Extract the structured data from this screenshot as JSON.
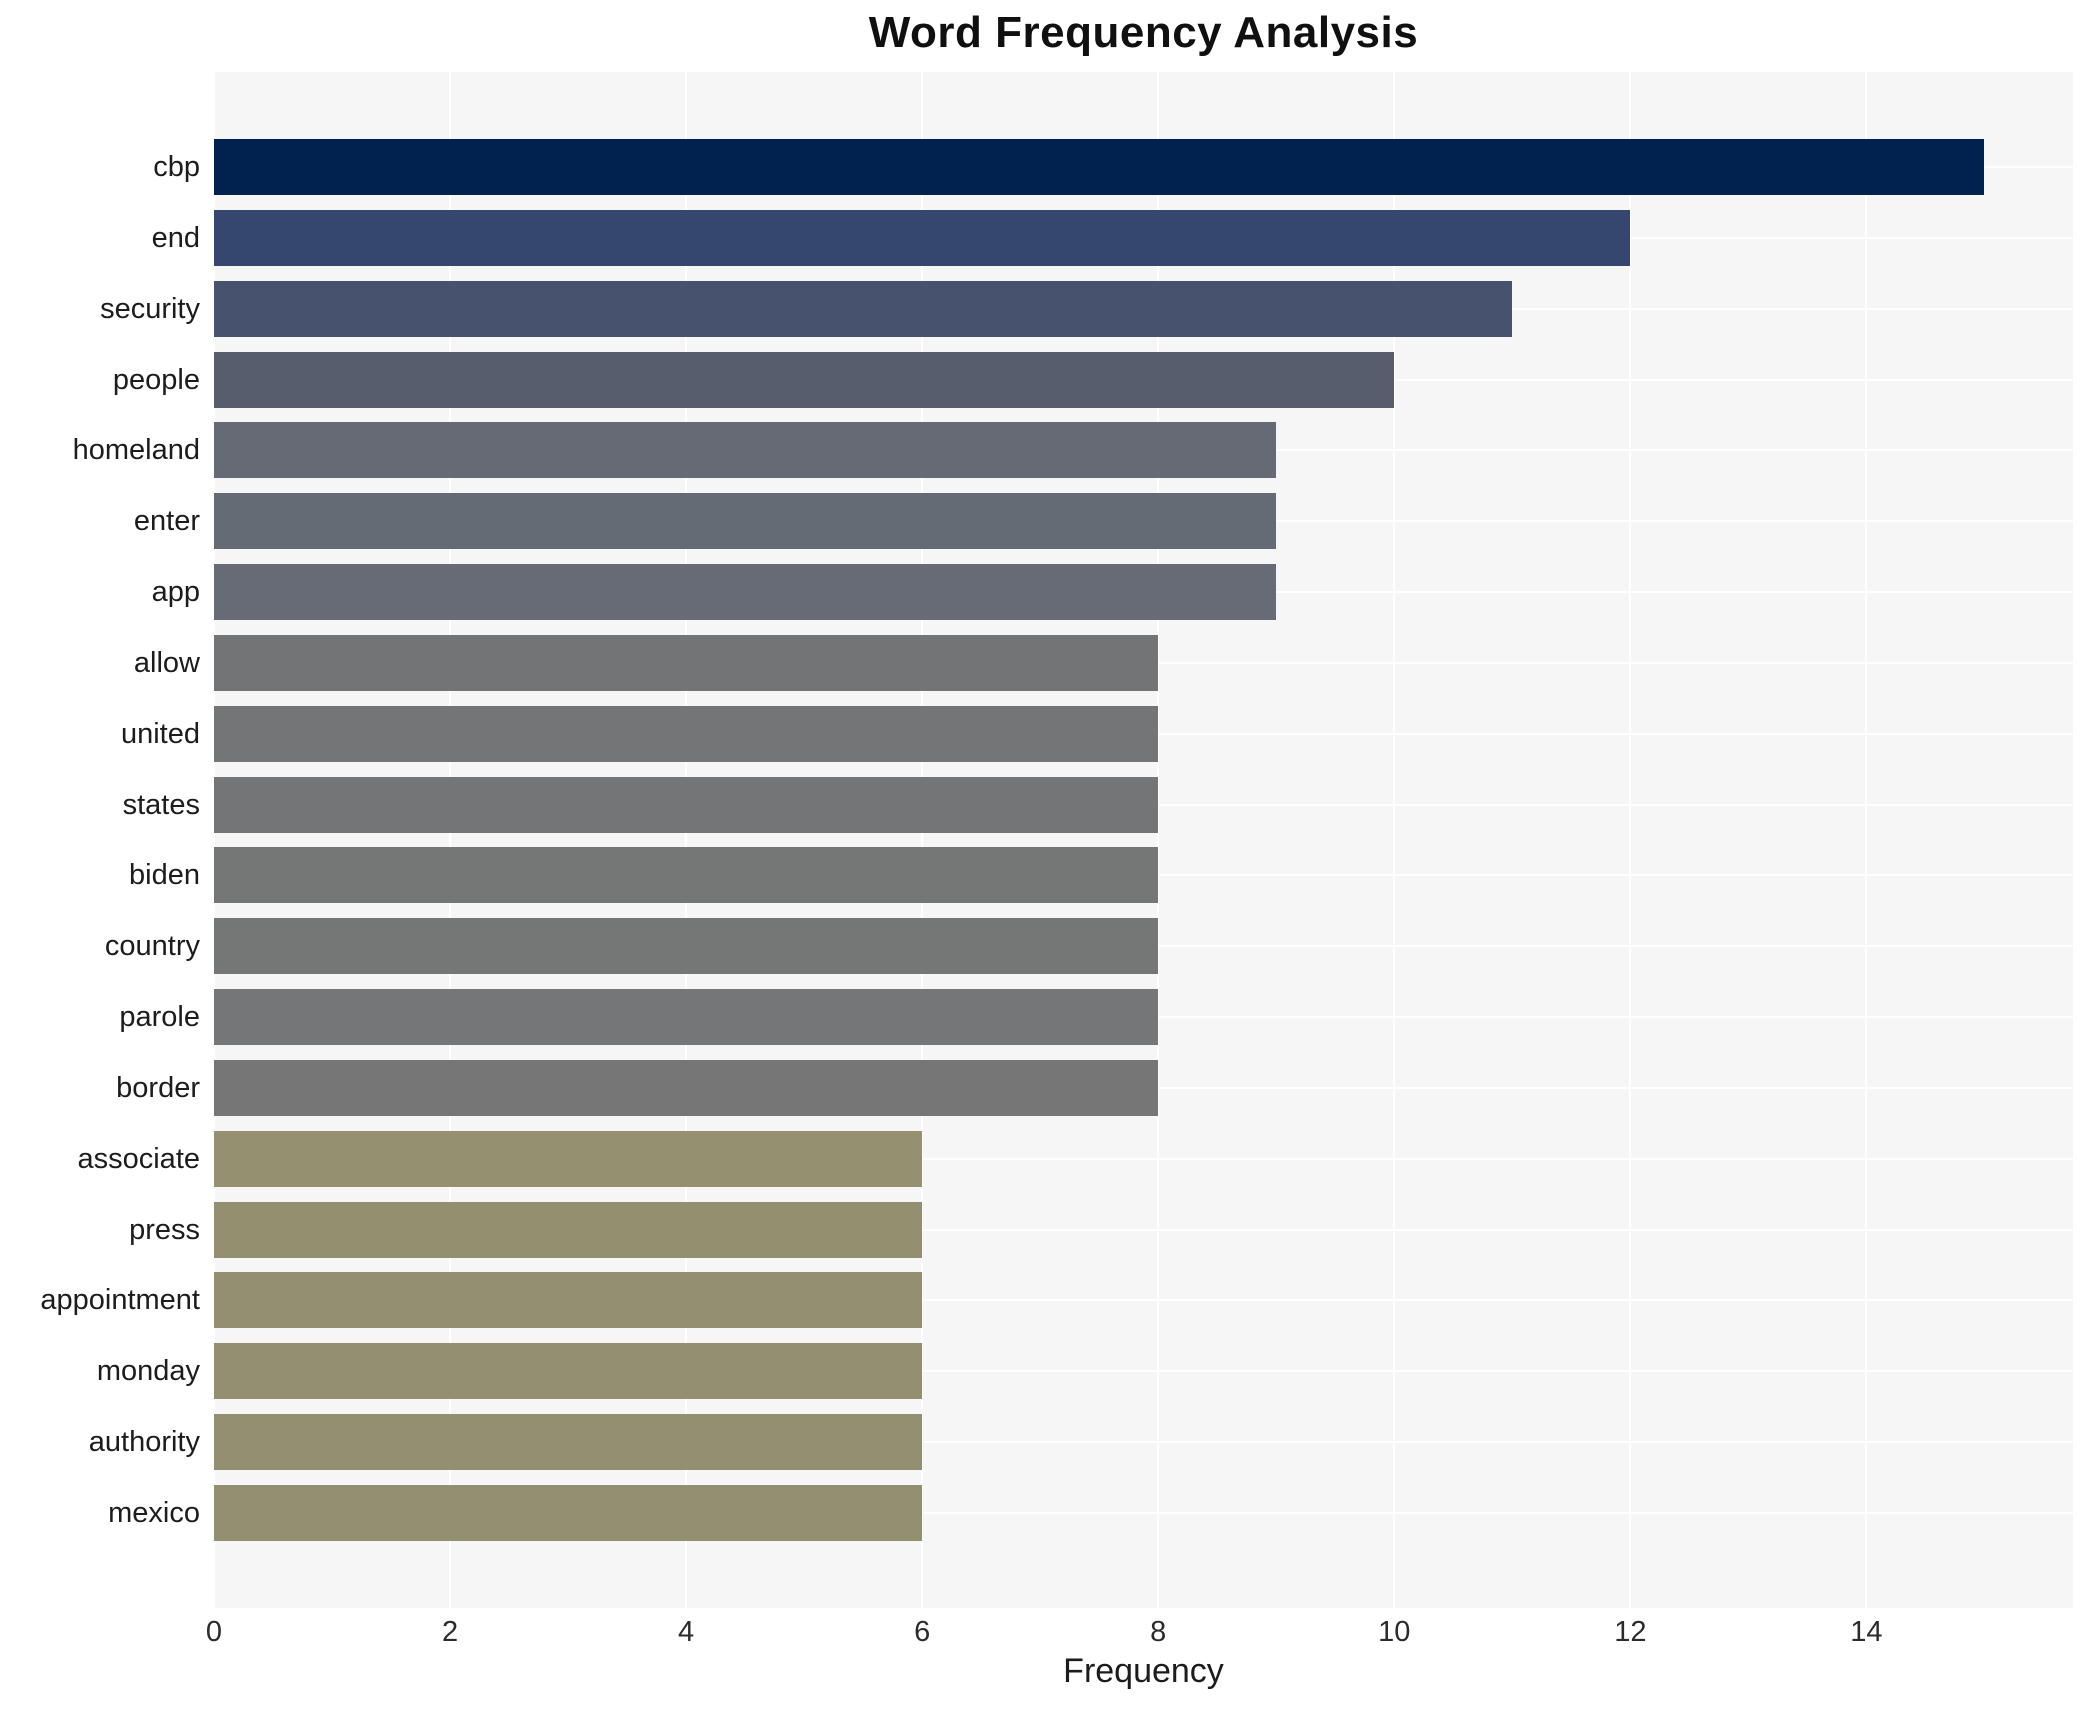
{
  "title": "Word Frequency Analysis",
  "chart_data": {
    "type": "bar",
    "orientation": "horizontal",
    "title": "Word Frequency Analysis",
    "xlabel": "Frequency",
    "ylabel": "",
    "xlim": [
      0,
      15.75
    ],
    "xticks": [
      0,
      2,
      4,
      6,
      8,
      10,
      12,
      14
    ],
    "grid": true,
    "legend": "none",
    "plot_background": "#f6f6f7",
    "grid_color": "#ffffff",
    "categories": [
      "cbp",
      "end",
      "security",
      "people",
      "homeland",
      "enter",
      "app",
      "allow",
      "united",
      "states",
      "biden",
      "country",
      "parole",
      "border",
      "associate",
      "press",
      "appointment",
      "monday",
      "authority",
      "mexico"
    ],
    "values": [
      15,
      12,
      11,
      10,
      9,
      9,
      9,
      8,
      8,
      8,
      8,
      8,
      8,
      8,
      6,
      6,
      6,
      6,
      6,
      6
    ],
    "bar_colors": [
      "#01224e",
      "#36476f",
      "#47526e",
      "#575d6d",
      "#656a74",
      "#656b74",
      "#666b75",
      "#737476",
      "#747576",
      "#747576",
      "#757676",
      "#757676",
      "#757677",
      "#767677",
      "#949070",
      "#94906f",
      "#948f70",
      "#948f70",
      "#938f71",
      "#938f71"
    ]
  }
}
